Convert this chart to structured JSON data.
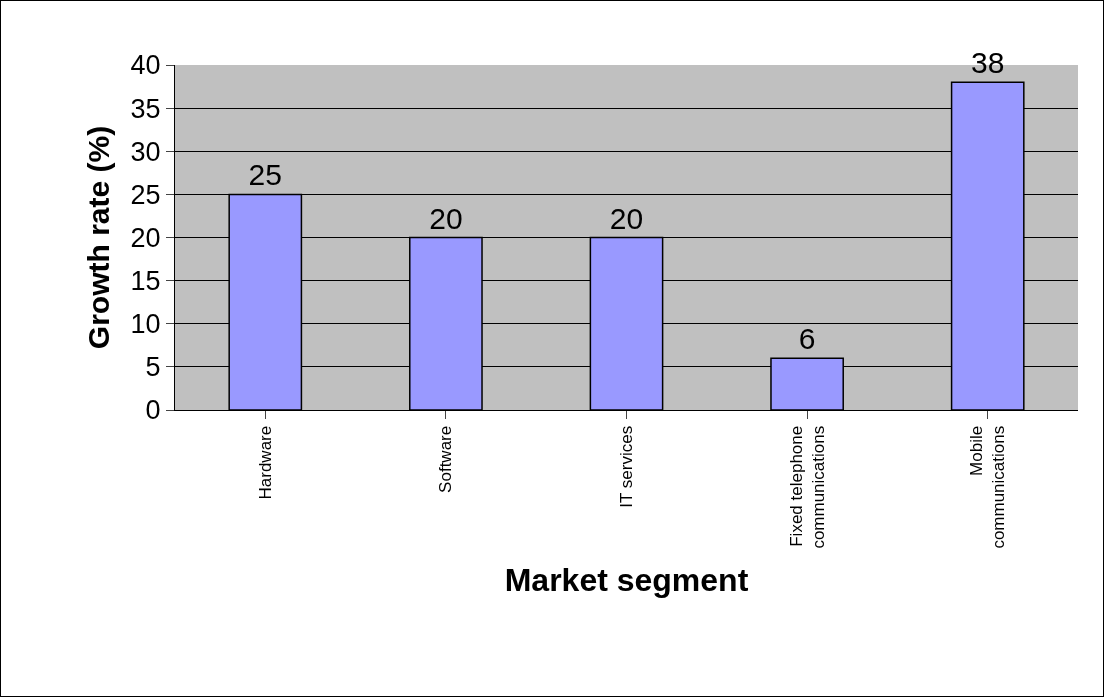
{
  "chart_data": {
    "type": "bar",
    "xlabel": "Market segment",
    "ylabel": "Growth rate (%)",
    "categories": [
      "Hardware",
      "Software",
      "IT services",
      "Fixed telephone communications",
      "Mobile communications"
    ],
    "values": [
      25,
      20,
      20,
      6,
      38
    ],
    "color": "#9999ff",
    "ylim": [
      0,
      40
    ],
    "yticks": [
      0,
      5,
      10,
      15,
      20,
      25,
      30,
      35,
      40
    ],
    "grid": "y",
    "data_labels": true
  }
}
